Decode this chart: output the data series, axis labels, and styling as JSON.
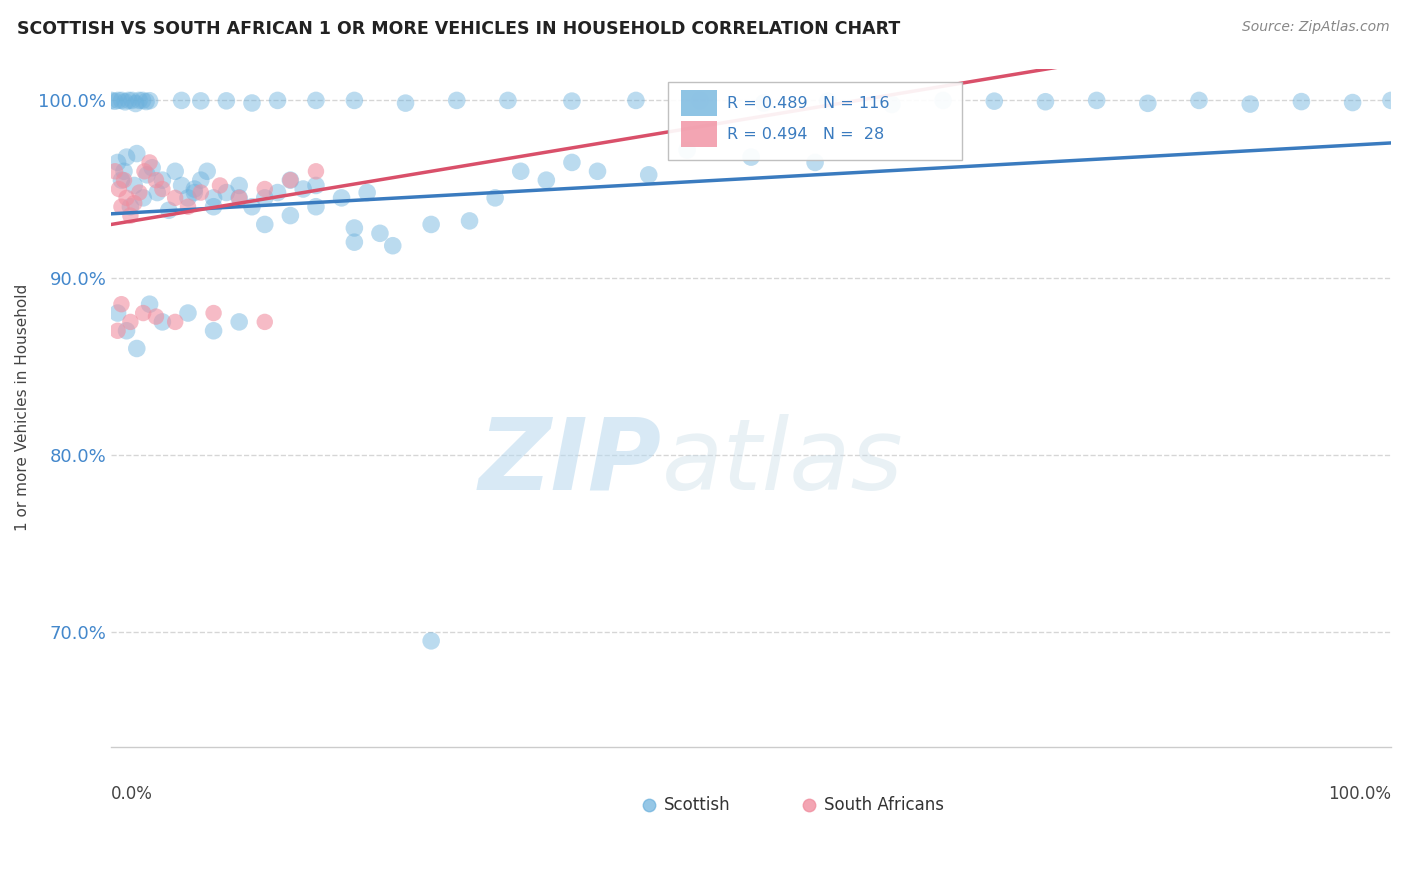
{
  "title": "SCOTTISH VS SOUTH AFRICAN 1 OR MORE VEHICLES IN HOUSEHOLD CORRELATION CHART",
  "source": "Source: ZipAtlas.com",
  "ylabel": "1 or more Vehicles in Household",
  "xlim": [
    0.0,
    1.0
  ],
  "ylim": [
    0.635,
    1.018
  ],
  "yticks": [
    0.7,
    0.8,
    0.9,
    1.0
  ],
  "ytick_labels": [
    "70.0%",
    "80.0%",
    "90.0%",
    "100.0%"
  ],
  "scottish_color": "#6ab0dc",
  "sa_color": "#f08fa0",
  "scottish_line_color": "#3a7bbf",
  "sa_line_color": "#d9506a",
  "watermark_zip": "ZIP",
  "watermark_atlas": "atlas",
  "legend_text1": "R = 0.489   N = 116",
  "legend_text2": "R = 0.494   N =  28"
}
